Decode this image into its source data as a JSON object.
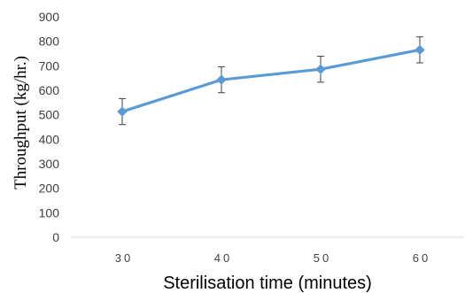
{
  "chart_data": {
    "type": "line",
    "title": "",
    "xlabel": "Sterilisation  time (minutes)",
    "ylabel": "Throughput  (kg/hr.)",
    "categories": [
      "30",
      "40",
      "50",
      "60"
    ],
    "ylim": [
      0,
      900
    ],
    "yticks": [
      "0",
      "100",
      "200",
      "300",
      "400",
      "500",
      "600",
      "700",
      "800",
      "900"
    ],
    "grid": false,
    "series": [
      {
        "values": [
          513,
          643,
          686,
          765
        ],
        "error": [
          53,
          53,
          53,
          53
        ],
        "color": "#5B9BD5",
        "marker": "diamond"
      }
    ],
    "axis_color": "#D9D9D9",
    "errorbar_color": "#404040"
  }
}
